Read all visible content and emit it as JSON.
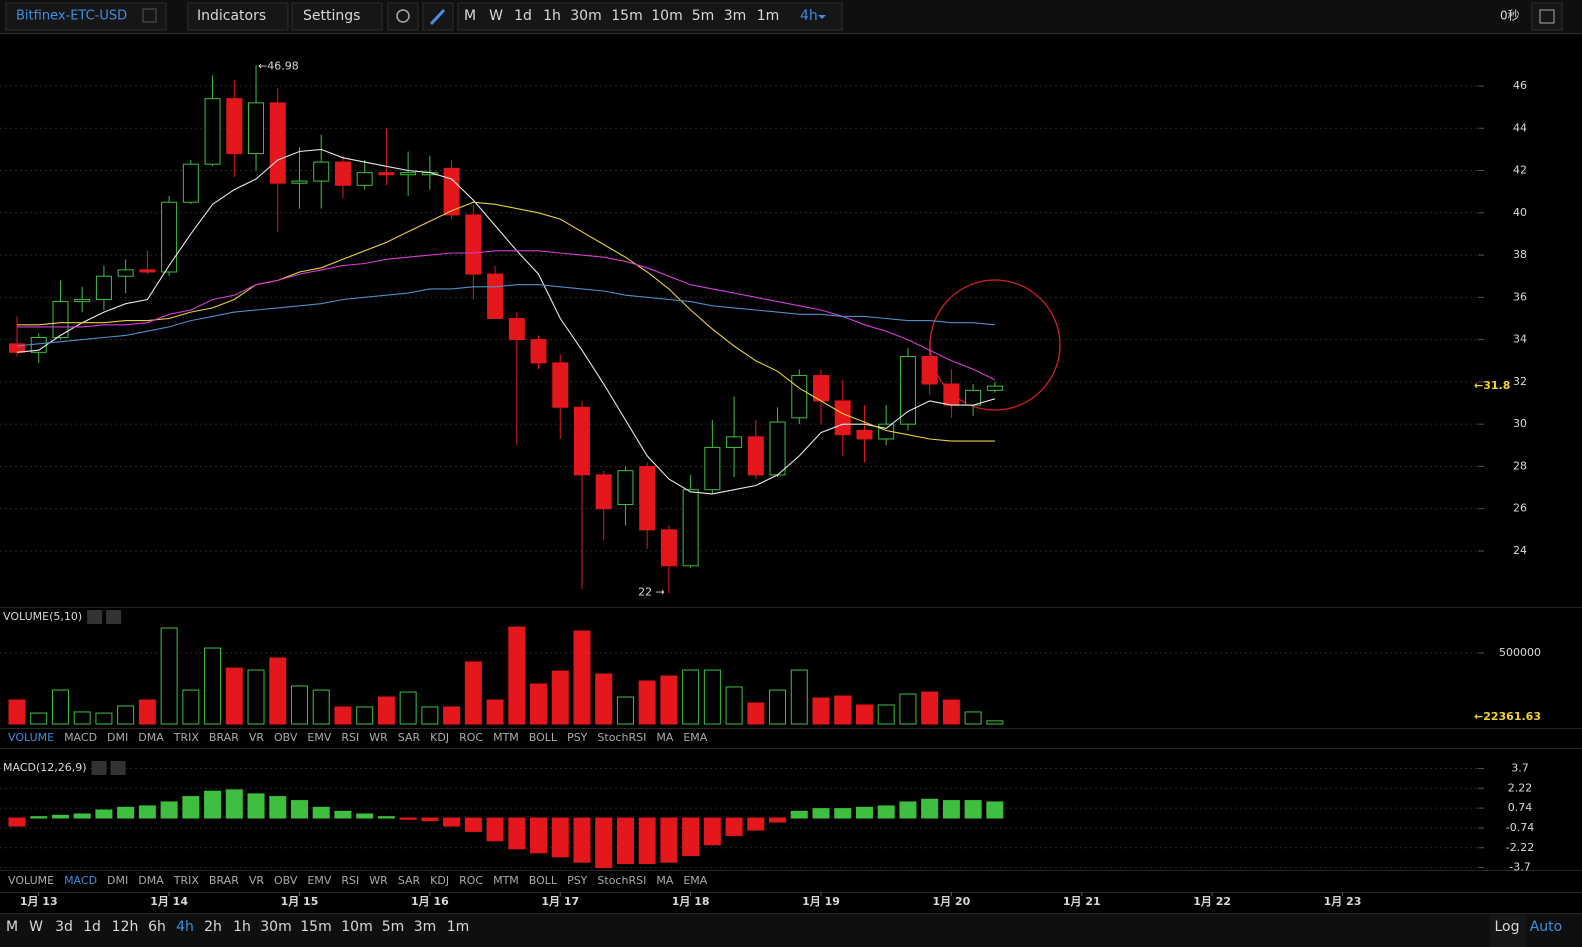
{
  "toolbar": {
    "symbol": "Bitfinex-ETC-USD",
    "indicators": "Indicators",
    "settings": "Settings",
    "intervals": [
      "M",
      "W",
      "1d",
      "1h",
      "30m",
      "15m",
      "10m",
      "5m",
      "3m",
      "1m"
    ],
    "active_interval": "4h",
    "timer": "0秒"
  },
  "chart_data": [
    {
      "type": "candlestick",
      "open": [
        33.8,
        33.4,
        34.1,
        35.8,
        35.9,
        37.0,
        37.3,
        37.2,
        40.5,
        42.3,
        45.4,
        42.8,
        45.2,
        41.4,
        41.5,
        42.4,
        41.3,
        41.9,
        41.8,
        41.8,
        42.1,
        39.9,
        37.1,
        35.0,
        34.0,
        32.9,
        30.8,
        27.6,
        26.2,
        28.0,
        25.0,
        23.3,
        26.9,
        28.9,
        29.4,
        27.6,
        30.3,
        32.3,
        31.1,
        29.7,
        29.3,
        30.0,
        33.2,
        31.9,
        30.9,
        31.6
      ],
      "high": [
        35.1,
        34.3,
        36.8,
        36.5,
        37.5,
        37.8,
        38.2,
        40.8,
        42.5,
        46.5,
        46.3,
        46.98,
        45.9,
        43.1,
        43.7,
        42.7,
        42.5,
        44.0,
        42.9,
        42.7,
        42.5,
        40.4,
        37.5,
        35.3,
        34.2,
        33.3,
        31.1,
        27.8,
        28.0,
        28.2,
        25.2,
        27.6,
        30.2,
        31.3,
        30.2,
        30.8,
        32.6,
        32.6,
        32.1,
        30.9,
        30.9,
        33.6,
        34.0,
        32.6,
        31.9,
        32.0
      ],
      "low": [
        33.2,
        32.9,
        34.0,
        35.3,
        35.4,
        36.2,
        37.1,
        37.0,
        40.4,
        42.2,
        41.7,
        42.0,
        39.1,
        40.2,
        40.2,
        40.7,
        41.1,
        41.3,
        40.8,
        41.1,
        39.7,
        35.9,
        35.0,
        29.0,
        32.6,
        29.3,
        22.2,
        24.5,
        25.2,
        24.1,
        22.0,
        23.2,
        26.7,
        27.5,
        27.4,
        27.5,
        30.0,
        30.0,
        28.5,
        28.2,
        29.0,
        29.7,
        31.4,
        30.3,
        30.4,
        31.5
      ],
      "close": [
        33.4,
        34.1,
        35.8,
        35.9,
        37.0,
        37.3,
        37.2,
        40.5,
        42.3,
        45.4,
        42.8,
        45.2,
        41.4,
        41.5,
        42.4,
        41.3,
        41.9,
        41.8,
        41.9,
        41.9,
        39.9,
        37.1,
        35.0,
        34.0,
        32.9,
        30.8,
        27.6,
        26.0,
        27.8,
        25.0,
        23.3,
        26.9,
        28.9,
        29.4,
        27.6,
        30.1,
        32.3,
        31.1,
        29.5,
        29.3,
        30.0,
        33.2,
        31.9,
        30.9,
        31.6,
        31.8
      ],
      "up_color": "#3fbf3f",
      "down_color": "#e3171c",
      "lines": [
        {
          "color": "#e8e8e8",
          "values": [
            33.4,
            33.5,
            34.2,
            34.8,
            35.3,
            35.7,
            35.9,
            37.5,
            39.0,
            40.4,
            41.1,
            41.6,
            42.5,
            42.9,
            43.0,
            42.6,
            42.4,
            42.2,
            42.0,
            41.9,
            41.6,
            40.6,
            39.4,
            38.2,
            37.1,
            35.0,
            33.5,
            31.9,
            30.2,
            28.5,
            27.4,
            26.8,
            26.7,
            26.9,
            27.1,
            27.6,
            28.5,
            29.6,
            30.0,
            30.0,
            29.8,
            30.6,
            31.1,
            30.9,
            30.9,
            31.2
          ]
        },
        {
          "color": "#e8d23a",
          "values": [
            34.7,
            34.7,
            34.8,
            34.8,
            34.8,
            34.9,
            34.9,
            35.0,
            35.3,
            35.5,
            35.9,
            36.6,
            36.8,
            37.2,
            37.4,
            37.8,
            38.2,
            38.6,
            39.1,
            39.6,
            40.1,
            40.5,
            40.4,
            40.2,
            40.0,
            39.7,
            39.1,
            38.5,
            37.9,
            37.2,
            36.4,
            35.4,
            34.5,
            33.7,
            33.0,
            32.5,
            31.7,
            31.1,
            30.5,
            30.1,
            29.7,
            29.5,
            29.3,
            29.2,
            29.2,
            29.2
          ]
        },
        {
          "color": "#d63ad6",
          "values": [
            34.6,
            34.6,
            34.6,
            34.6,
            34.7,
            34.7,
            34.8,
            35.2,
            35.4,
            35.9,
            36.1,
            36.6,
            36.8,
            37.1,
            37.3,
            37.5,
            37.6,
            37.8,
            37.9,
            38.0,
            38.1,
            38.1,
            38.2,
            38.2,
            38.2,
            38.1,
            38.0,
            37.9,
            37.7,
            37.4,
            37.0,
            36.6,
            36.4,
            36.2,
            36.0,
            35.8,
            35.6,
            35.4,
            35.1,
            34.7,
            34.4,
            34.0,
            33.5,
            33.0,
            32.6,
            32.1
          ]
        },
        {
          "color": "#4f8fc8",
          "values": [
            33.7,
            33.8,
            33.9,
            34.0,
            34.1,
            34.2,
            34.4,
            34.6,
            34.9,
            35.1,
            35.3,
            35.4,
            35.5,
            35.6,
            35.7,
            35.9,
            36.0,
            36.1,
            36.2,
            36.4,
            36.4,
            36.5,
            36.5,
            36.6,
            36.6,
            36.5,
            36.4,
            36.3,
            36.1,
            36.0,
            35.9,
            35.8,
            35.6,
            35.5,
            35.4,
            35.3,
            35.2,
            35.2,
            35.1,
            35.1,
            35.0,
            34.9,
            34.9,
            34.8,
            34.8,
            34.7
          ]
        }
      ],
      "ylim": [
        21.35,
        48.27
      ],
      "yticks": [
        24,
        26,
        28,
        30,
        32,
        34,
        36,
        38,
        40,
        42,
        44,
        46
      ],
      "grid": true,
      "max_label": "←46.98",
      "min_label": "22 →",
      "last_label": "←31.8"
    },
    {
      "type": "bar",
      "title": "VOLUME(5,10)",
      "active_tab": "VOLUME",
      "values": [
        169000,
        77000,
        239000,
        85000,
        77000,
        127000,
        169000,
        676000,
        239000,
        535000,
        394000,
        380000,
        465000,
        268000,
        239000,
        120000,
        120000,
        190000,
        225000,
        120000,
        120000,
        437000,
        169000,
        683000,
        282000,
        373000,
        655000,
        352000,
        190000,
        303000,
        338000,
        380000,
        380000,
        261000,
        148000,
        239000,
        380000,
        183000,
        197000,
        134000,
        134000,
        211000,
        225000,
        169000,
        85000,
        22361.63
      ],
      "ylim": [
        0,
        810000
      ],
      "yticks": [
        500000
      ],
      "grid": true,
      "last_label": "←22361.63"
    },
    {
      "type": "bar",
      "title": "MACD(12,26,9)",
      "active_tab": "MACD",
      "values": [
        -0.6,
        0.1,
        0.2,
        0.3,
        0.6,
        0.8,
        0.9,
        1.2,
        1.6,
        2.0,
        2.1,
        1.8,
        1.6,
        1.3,
        0.8,
        0.5,
        0.3,
        0.1,
        -0.1,
        -0.2,
        -0.6,
        -1.0,
        -1.7,
        -2.3,
        -2.6,
        -2.9,
        -3.3,
        -3.7,
        -3.4,
        -3.4,
        -3.3,
        -2.8,
        -2.0,
        -1.3,
        -0.9,
        -0.3,
        0.5,
        0.7,
        0.7,
        0.8,
        0.9,
        1.2,
        1.4,
        1.3,
        1.3,
        1.2
      ],
      "ylim": [
        -4.03,
        4.33
      ],
      "yticks": [
        -3.7,
        -2.22,
        -0.74,
        0.74,
        2.22,
        3.7
      ],
      "grid": true
    }
  ],
  "x_labels": [
    "1月 13",
    "1月 14",
    "1月 15",
    "1月 16",
    "1月 17",
    "1月 18",
    "1月 19",
    "1月 20",
    "1月 21",
    "1月 22",
    "1月 23"
  ],
  "indicator_tabs": [
    "VOLUME",
    "MACD",
    "DMI",
    "DMA",
    "TRIX",
    "BRAR",
    "VR",
    "OBV",
    "EMV",
    "RSI",
    "WR",
    "SAR",
    "KDJ",
    "ROC",
    "MTM",
    "BOLL",
    "PSY",
    "StochRSI",
    "MA",
    "EMA"
  ],
  "bottom_bar": {
    "intervals": [
      "M",
      "W",
      "3d",
      "1d",
      "12h",
      "6h",
      "4h",
      "2h",
      "1h",
      "30m",
      "15m",
      "10m",
      "5m",
      "3m",
      "1m"
    ],
    "log": "Log",
    "auto": "Auto"
  }
}
